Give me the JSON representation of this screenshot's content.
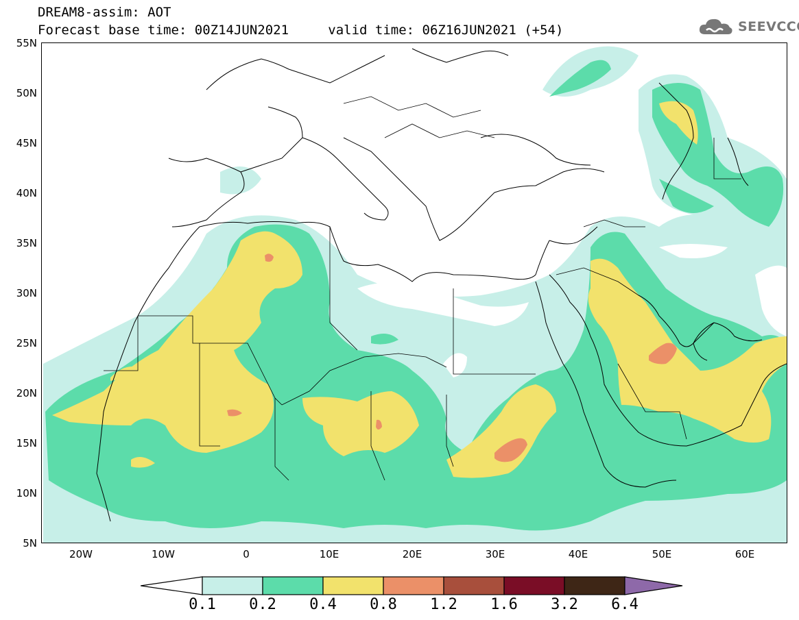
{
  "header": {
    "title_line1": "DREAM8-assim: AOT",
    "base_label": "Forecast base time: 00Z14JUN2021",
    "valid_label": "valid time: 06Z16JUN2021 (+54)"
  },
  "logo": {
    "text": "SEEVCCC",
    "icon": "cloud-icon"
  },
  "map": {
    "projection": "equirectangular",
    "lon_range": [
      -25,
      65
    ],
    "lat_range": [
      5,
      55
    ],
    "lat_labels": [
      "55N",
      "50N",
      "45N",
      "40N",
      "35N",
      "30N",
      "25N",
      "20N",
      "15N",
      "10N",
      "5N"
    ],
    "lon_labels": [
      "20W",
      "10W",
      "0",
      "10E",
      "20E",
      "30E",
      "40E",
      "50E",
      "60E"
    ]
  },
  "colorbar": {
    "levels": [
      "0.1",
      "0.2",
      "0.4",
      "0.8",
      "1.2",
      "1.6",
      "3.2",
      "6.4"
    ],
    "colors": [
      "#c7efe8",
      "#5cdcaa",
      "#f2e26c",
      "#eb9068",
      "#a84f3c",
      "#7a0d26",
      "#3e2616"
    ],
    "under_color": "#ffffff",
    "over_color": "#8e69a9"
  }
}
